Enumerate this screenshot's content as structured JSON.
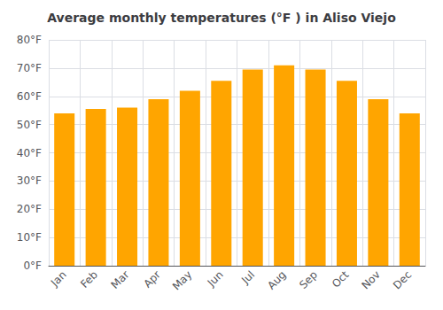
{
  "chart_data": {
    "type": "bar",
    "title": "Average monthly temperatures (°F ) in Aliso Viejo",
    "categories": [
      "Jan",
      "Feb",
      "Mar",
      "Apr",
      "May",
      "Jun",
      "Jul",
      "Aug",
      "Sep",
      "Oct",
      "Nov",
      "Dec"
    ],
    "values": [
      54,
      55.5,
      56,
      59,
      62,
      65.5,
      69.5,
      71,
      69.5,
      65.5,
      59,
      54
    ],
    "color": "#FFA500",
    "ylim": [
      0,
      80
    ],
    "yticks": [
      {
        "value": 0,
        "label": "0°F"
      },
      {
        "value": 10,
        "label": "10°F"
      },
      {
        "value": 20,
        "label": "20°F"
      },
      {
        "value": 30,
        "label": "30°F"
      },
      {
        "value": 40,
        "label": "40°F"
      },
      {
        "value": 50,
        "label": "50°F"
      },
      {
        "value": 60,
        "label": "60°F"
      },
      {
        "value": 70,
        "label": "70°F"
      },
      {
        "value": 80,
        "label": "80°F"
      }
    ],
    "grid": true
  }
}
